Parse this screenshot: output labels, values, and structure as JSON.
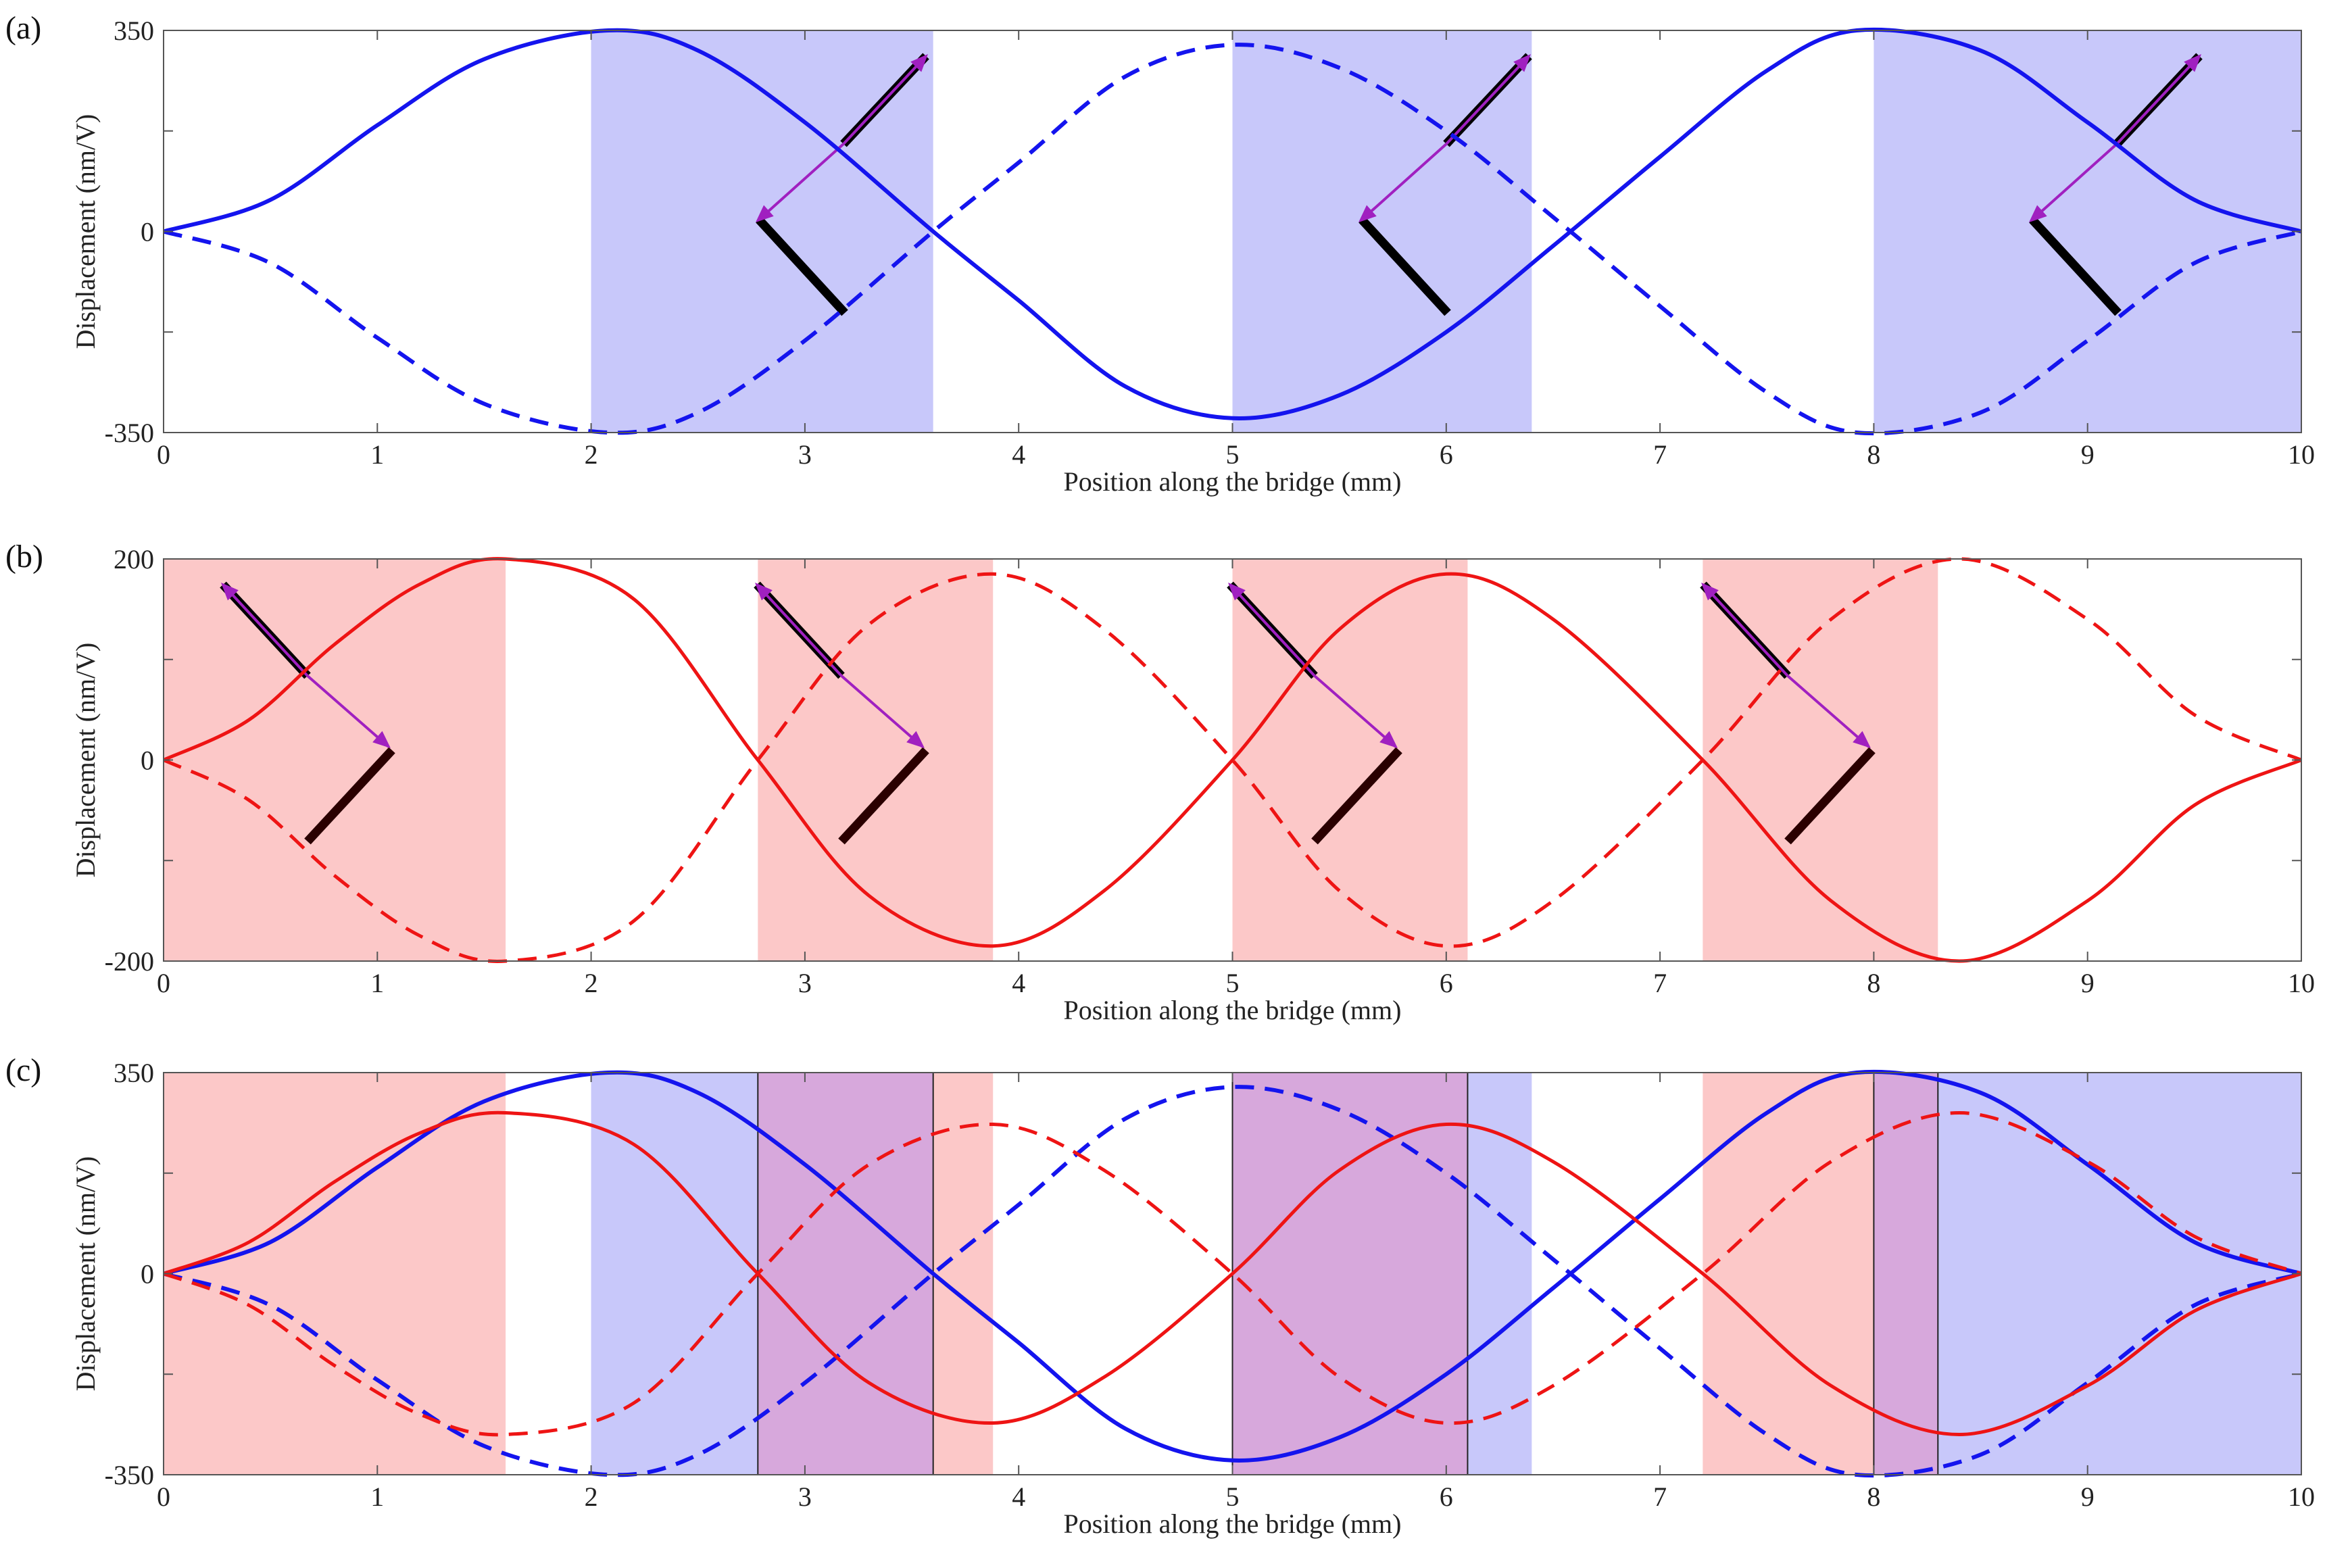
{
  "chart_data": [
    {
      "panel": "(a)",
      "type": "line",
      "xlabel": "Position along the bridge (mm)",
      "ylabel": "Displacement (nm/V)",
      "xlim": [
        0,
        10
      ],
      "ylim": [
        -350,
        350
      ],
      "xticks": [
        "0",
        "1",
        "2",
        "3",
        "4",
        "5",
        "6",
        "7",
        "8",
        "9",
        "10"
      ],
      "yticks": [
        "-350",
        "0",
        "350"
      ],
      "shaded_regions": [
        {
          "x": [
            2.0,
            3.6
          ],
          "color": "#c8c8fa"
        },
        {
          "x": [
            5.0,
            6.4
          ],
          "color": "#c8c8fa"
        },
        {
          "x": [
            8.0,
            10.0
          ],
          "color": "#c8c8fa"
        }
      ],
      "series": [
        {
          "style": "solid",
          "color": "#1414ee",
          "x": [
            0,
            0.5,
            1.0,
            1.5,
            2.08,
            2.5,
            3.0,
            3.6,
            4.0,
            4.5,
            5.0,
            5.5,
            6.0,
            6.5,
            7.0,
            7.5,
            7.92,
            8.5,
            9.0,
            9.5,
            10
          ],
          "y": [
            0,
            55,
            185,
            300,
            350,
            315,
            190,
            0,
            -120,
            -270,
            -325,
            -285,
            -175,
            -25,
            130,
            280,
            350,
            315,
            190,
            55,
            0
          ]
        },
        {
          "style": "dashed",
          "color": "#1414ee",
          "x": [
            0,
            0.5,
            1.0,
            1.5,
            2.08,
            2.5,
            3.0,
            3.6,
            4.0,
            4.5,
            5.0,
            5.5,
            6.0,
            6.5,
            7.0,
            7.5,
            7.92,
            8.5,
            9.0,
            9.5,
            10
          ],
          "y": [
            0,
            -55,
            -185,
            -300,
            -350,
            -315,
            -190,
            0,
            120,
            270,
            325,
            285,
            175,
            25,
            -130,
            -280,
            -350,
            -315,
            -190,
            -55,
            0
          ]
        }
      ]
    },
    {
      "panel": "(b)",
      "type": "line",
      "xlabel": "Position along the bridge (mm)",
      "ylabel": "Displacement (nm/V)",
      "xlim": [
        0,
        10
      ],
      "ylim": [
        -200,
        200
      ],
      "xticks": [
        "0",
        "1",
        "2",
        "3",
        "4",
        "5",
        "6",
        "7",
        "8",
        "9",
        "10"
      ],
      "yticks": [
        "-200",
        "0",
        "200"
      ],
      "shaded_regions": [
        {
          "x": [
            0.0,
            1.6
          ],
          "color": "#fcc8c8"
        },
        {
          "x": [
            2.78,
            3.88
          ],
          "color": "#fcc8c8"
        },
        {
          "x": [
            5.0,
            6.1
          ],
          "color": "#fcc8c8"
        },
        {
          "x": [
            7.2,
            8.3
          ],
          "color": "#fcc8c8"
        }
      ],
      "series": [
        {
          "style": "solid",
          "color": "#ee1414",
          "x": [
            0,
            0.4,
            0.8,
            1.2,
            1.6,
            2.2,
            2.78,
            3.3,
            3.88,
            4.4,
            5.0,
            5.5,
            6.0,
            6.5,
            7.2,
            7.8,
            8.4,
            9.0,
            9.5,
            10
          ],
          "y": [
            0,
            40,
            115,
            175,
            200,
            160,
            0,
            -135,
            -185,
            -130,
            0,
            130,
            185,
            140,
            0,
            -140,
            -200,
            -140,
            -45,
            0
          ]
        },
        {
          "style": "dashed",
          "color": "#ee1414",
          "x": [
            0,
            0.4,
            0.8,
            1.2,
            1.6,
            2.2,
            2.78,
            3.3,
            3.88,
            4.4,
            5.0,
            5.5,
            6.0,
            6.5,
            7.2,
            7.8,
            8.4,
            9.0,
            9.5,
            10
          ],
          "y": [
            0,
            -40,
            -115,
            -175,
            -200,
            -160,
            0,
            135,
            185,
            130,
            0,
            -130,
            -185,
            -140,
            0,
            140,
            200,
            140,
            45,
            0
          ]
        }
      ]
    },
    {
      "panel": "(c)",
      "type": "line",
      "xlabel": "Position along the bridge (mm)",
      "ylabel": "Displacement (nm/V)",
      "xlim": [
        0,
        10
      ],
      "ylim": [
        -350,
        350
      ],
      "xticks": [
        "0",
        "1",
        "2",
        "3",
        "4",
        "5",
        "6",
        "7",
        "8",
        "9",
        "10"
      ],
      "yticks": [
        "-350",
        "0",
        "350"
      ],
      "shaded_regions": [
        {
          "x": [
            0.0,
            1.6
          ],
          "color": "#fcc8c8"
        },
        {
          "x": [
            2.0,
            3.6
          ],
          "color": "#c8c8fa"
        },
        {
          "x": [
            2.78,
            3.88
          ],
          "color": "#fcc8c8"
        },
        {
          "x": [
            5.0,
            6.4
          ],
          "color": "#c8c8fa"
        },
        {
          "x": [
            5.0,
            6.1
          ],
          "color": "#fcc8c8"
        },
        {
          "x": [
            7.2,
            8.3
          ],
          "color": "#fcc8c8"
        },
        {
          "x": [
            8.0,
            10.0
          ],
          "color": "#c8c8fa"
        }
      ],
      "overlap_regions": [
        {
          "x": [
            2.78,
            3.6
          ],
          "color": "#d7a8dc"
        },
        {
          "x": [
            5.0,
            6.1
          ],
          "color": "#d7a8dc"
        },
        {
          "x": [
            8.0,
            8.3
          ],
          "color": "#d7a8dc"
        }
      ],
      "series": [
        {
          "style": "solid",
          "color": "#1414ee",
          "x": [
            0,
            0.5,
            1.0,
            1.5,
            2.08,
            2.5,
            3.0,
            3.6,
            4.0,
            4.5,
            5.0,
            5.5,
            6.0,
            6.5,
            7.0,
            7.5,
            7.92,
            8.5,
            9.0,
            9.5,
            10
          ],
          "y": [
            0,
            55,
            185,
            300,
            350,
            315,
            190,
            0,
            -120,
            -270,
            -325,
            -285,
            -175,
            -25,
            130,
            280,
            350,
            315,
            190,
            55,
            0
          ]
        },
        {
          "style": "dashed",
          "color": "#1414ee",
          "x": [
            0,
            0.5,
            1.0,
            1.5,
            2.08,
            2.5,
            3.0,
            3.6,
            4.0,
            4.5,
            5.0,
            5.5,
            6.0,
            6.5,
            7.0,
            7.5,
            7.92,
            8.5,
            9.0,
            9.5,
            10
          ],
          "y": [
            0,
            -55,
            -185,
            -300,
            -350,
            -315,
            -190,
            0,
            120,
            270,
            325,
            285,
            175,
            25,
            -130,
            -280,
            -350,
            -315,
            -190,
            -55,
            0
          ]
        },
        {
          "style": "solid",
          "color": "#ee1414",
          "x": [
            0,
            0.4,
            0.8,
            1.2,
            1.6,
            2.2,
            2.78,
            3.3,
            3.88,
            4.4,
            5.0,
            5.5,
            6.0,
            6.5,
            7.2,
            7.8,
            8.4,
            9.0,
            9.5,
            10
          ],
          "y": [
            0,
            55,
            160,
            245,
            280,
            225,
            0,
            -190,
            -260,
            -180,
            0,
            180,
            260,
            195,
            0,
            -195,
            -280,
            -195,
            -65,
            0
          ]
        },
        {
          "style": "dashed",
          "color": "#ee1414",
          "x": [
            0,
            0.4,
            0.8,
            1.2,
            1.6,
            2.2,
            2.78,
            3.3,
            3.88,
            4.4,
            5.0,
            5.5,
            6.0,
            6.5,
            7.2,
            7.8,
            8.4,
            9.0,
            9.5,
            10
          ],
          "y": [
            0,
            -55,
            -160,
            -245,
            -280,
            -225,
            0,
            190,
            260,
            180,
            0,
            -180,
            -260,
            -195,
            0,
            195,
            280,
            195,
            65,
            0
          ]
        }
      ]
    }
  ],
  "colors": {
    "blue": "#1414ee",
    "red": "#ee1414",
    "purple": "#a020c0",
    "black": "#000000"
  }
}
